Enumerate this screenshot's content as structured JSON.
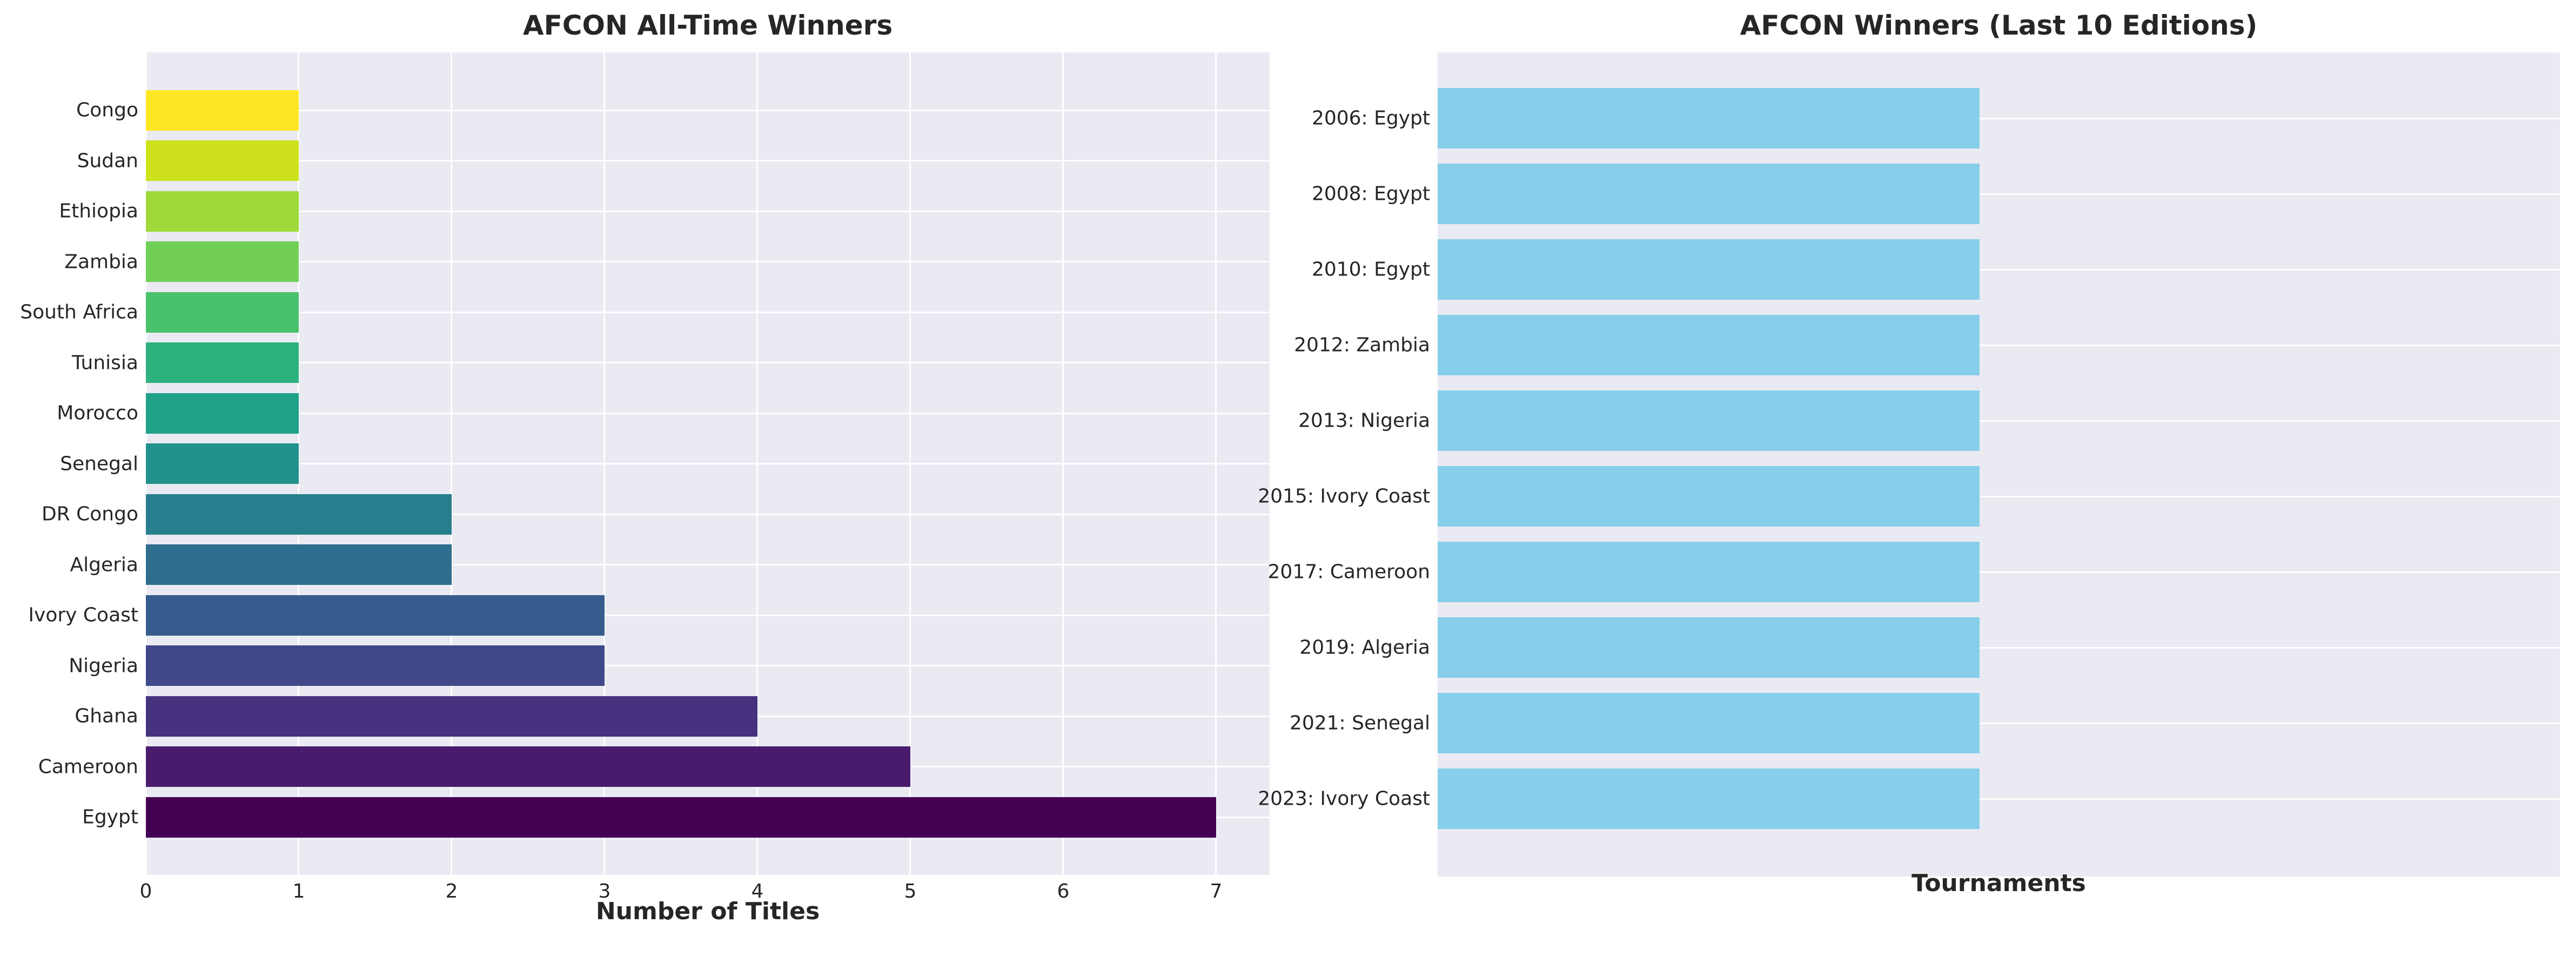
{
  "figure": {
    "background": "#ffffff",
    "plot_background": "#eaeaf2",
    "grid_color": "#ffffff",
    "text_color": "#262626"
  },
  "chart_data": [
    {
      "type": "bar",
      "orientation": "horizontal",
      "title": "AFCON All-Time Winners",
      "xlabel": "Number of Titles",
      "categories_top_to_bottom": [
        "Congo",
        "Sudan",
        "Ethiopia",
        "Zambia",
        "South Africa",
        "Tunisia",
        "Morocco",
        "Senegal",
        "DR Congo",
        "Algeria",
        "Ivory Coast",
        "Nigeria",
        "Ghana",
        "Cameroon",
        "Egypt"
      ],
      "values": [
        1,
        1,
        1,
        1,
        1,
        1,
        1,
        1,
        2,
        2,
        3,
        3,
        4,
        5,
        7
      ],
      "bar_colors": [
        "#fde725",
        "#cde11d",
        "#9fda3a",
        "#71cf57",
        "#4ac16d",
        "#2db27d",
        "#1fa188",
        "#21918c",
        "#277f8e",
        "#2e6d8e",
        "#365c8d",
        "#3f4889",
        "#46327e",
        "#481b6d",
        "#440154"
      ],
      "colormap": "viridis",
      "xticks": [
        0,
        1,
        2,
        3,
        4,
        5,
        6,
        7
      ],
      "xlim": [
        0,
        7.35
      ],
      "grid": {
        "vertical": true,
        "horizontal": true,
        "color": "#ffffff"
      },
      "plot_background": "#eaeaf2",
      "text_color": "#262626",
      "legend": "none"
    },
    {
      "type": "bar",
      "orientation": "horizontal",
      "title": "AFCON Winners (Last 10 Editions)",
      "xlabel": "Tournaments",
      "categories_top_to_bottom": [
        "2006: Egypt",
        "2008: Egypt",
        "2010: Egypt",
        "2012: Zambia",
        "2013: Nigeria",
        "2015: Ivory Coast",
        "2017: Cameroon",
        "2019: Algeria",
        "2021: Senegal",
        "2023: Ivory Coast"
      ],
      "values": [
        1,
        1,
        1,
        1,
        1,
        1,
        1,
        1,
        1,
        1
      ],
      "bar_color": "#87ceeb",
      "xticks": [],
      "xlim": [
        0,
        2.07
      ],
      "grid": {
        "vertical": false,
        "horizontal": true,
        "color": "#ffffff"
      },
      "plot_background": "#eaeaf2",
      "text_color": "#262626",
      "legend": "none"
    }
  ]
}
